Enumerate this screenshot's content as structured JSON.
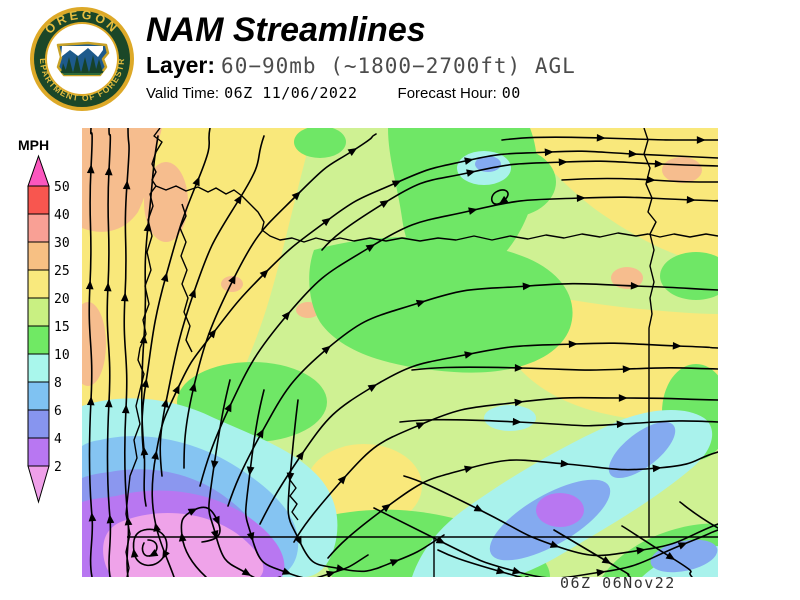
{
  "header": {
    "title": "NAM Streamlines",
    "layer_label": "Layer:",
    "layer_value": "60−90mb (~1800−2700ft) AGL",
    "valid_time_label": "Valid Time:",
    "valid_time_value": "06Z 11/06/2022",
    "forecast_hour_label": "Forecast Hour:",
    "forecast_hour_value": "00"
  },
  "logo": {
    "top_text": "OREGON",
    "bottom_text": "DEPARTMENT OF FORESTRY",
    "ring_color": "#dda928",
    "band_color": "#1b4728",
    "text_color": "#e5bd3f"
  },
  "legend": {
    "units_label": "MPH",
    "boundaries": [
      "50",
      "40",
      "30",
      "25",
      "20",
      "15",
      "10",
      "8",
      "6",
      "4",
      "2"
    ],
    "cell_colors": [
      "#f8564f",
      "#f9a095",
      "#f7c083",
      "#f9e97d",
      "#c9f082",
      "#70e964",
      "#a9f7ec",
      "#7fc2f2",
      "#8795ef",
      "#b877f2"
    ],
    "arrow_top_color": "#fb57be",
    "arrow_bottom_color": "#efa0e9"
  },
  "map": {
    "timestamp": "06Z 06Nov22"
  }
}
